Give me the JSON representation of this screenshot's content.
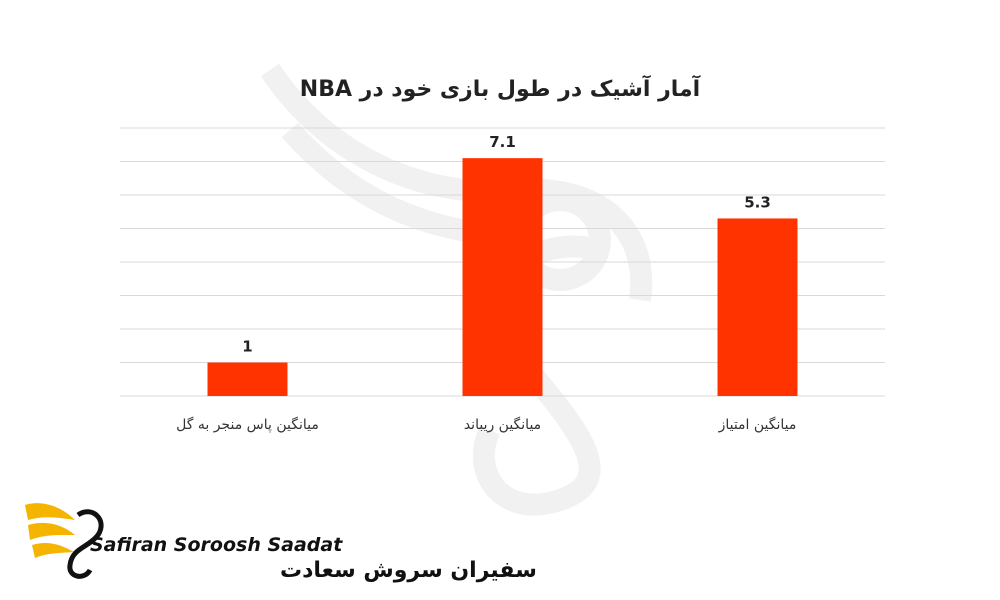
{
  "chart_data": {
    "type": "bar",
    "title": "آمار آشیک در طول بازی خود در  NBA",
    "categories": [
      "میانگین پاس منجر به گل",
      "میانگین ریباند",
      "میانگین امتیاز"
    ],
    "values": [
      1,
      7.1,
      5.3
    ],
    "value_labels": [
      "1",
      "7.1",
      "5.3"
    ],
    "ylim": [
      0,
      8
    ],
    "grid": true,
    "bar_color": "#ff3300",
    "grid_color": "#d9d9d9"
  },
  "logo": {
    "name_en": "Safiran Soroosh Saadat",
    "name_fa": "سفیران سروش سعادت",
    "accent_color": "#f5b400"
  }
}
